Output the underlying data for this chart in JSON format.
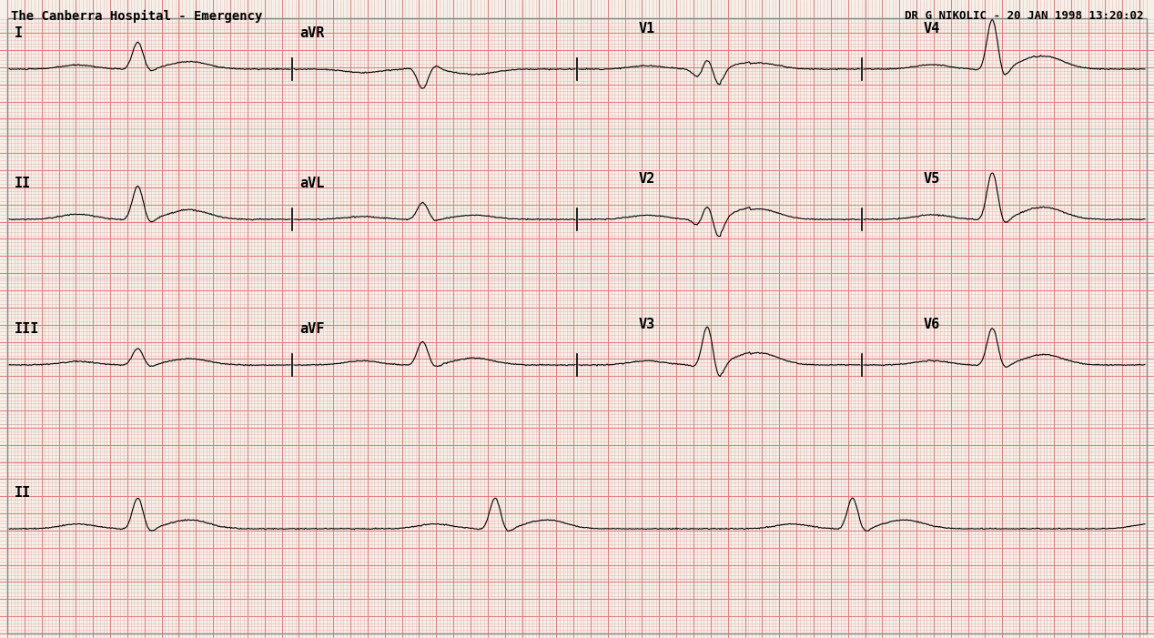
{
  "title_left": "The Canberra Hospital - Emergency",
  "title_right": "DR G NIKOLIC - 20 JAN 1998 13:20:02",
  "bg_color": "#f5f0e8",
  "grid_minor_color": "#e8a0a0",
  "grid_major_color": "#e06060",
  "ecg_color": "#000000",
  "lead_labels": [
    "I",
    "II",
    "III",
    "II"
  ],
  "mid_labels": [
    "aVR",
    "aVL",
    "aVF"
  ],
  "right_labels": [
    "V1",
    "V2",
    "V3"
  ],
  "far_right_labels": [
    "V4",
    "V5",
    "V6"
  ],
  "sample_rate": 500,
  "paper_speed": 25,
  "amplitude": 10
}
